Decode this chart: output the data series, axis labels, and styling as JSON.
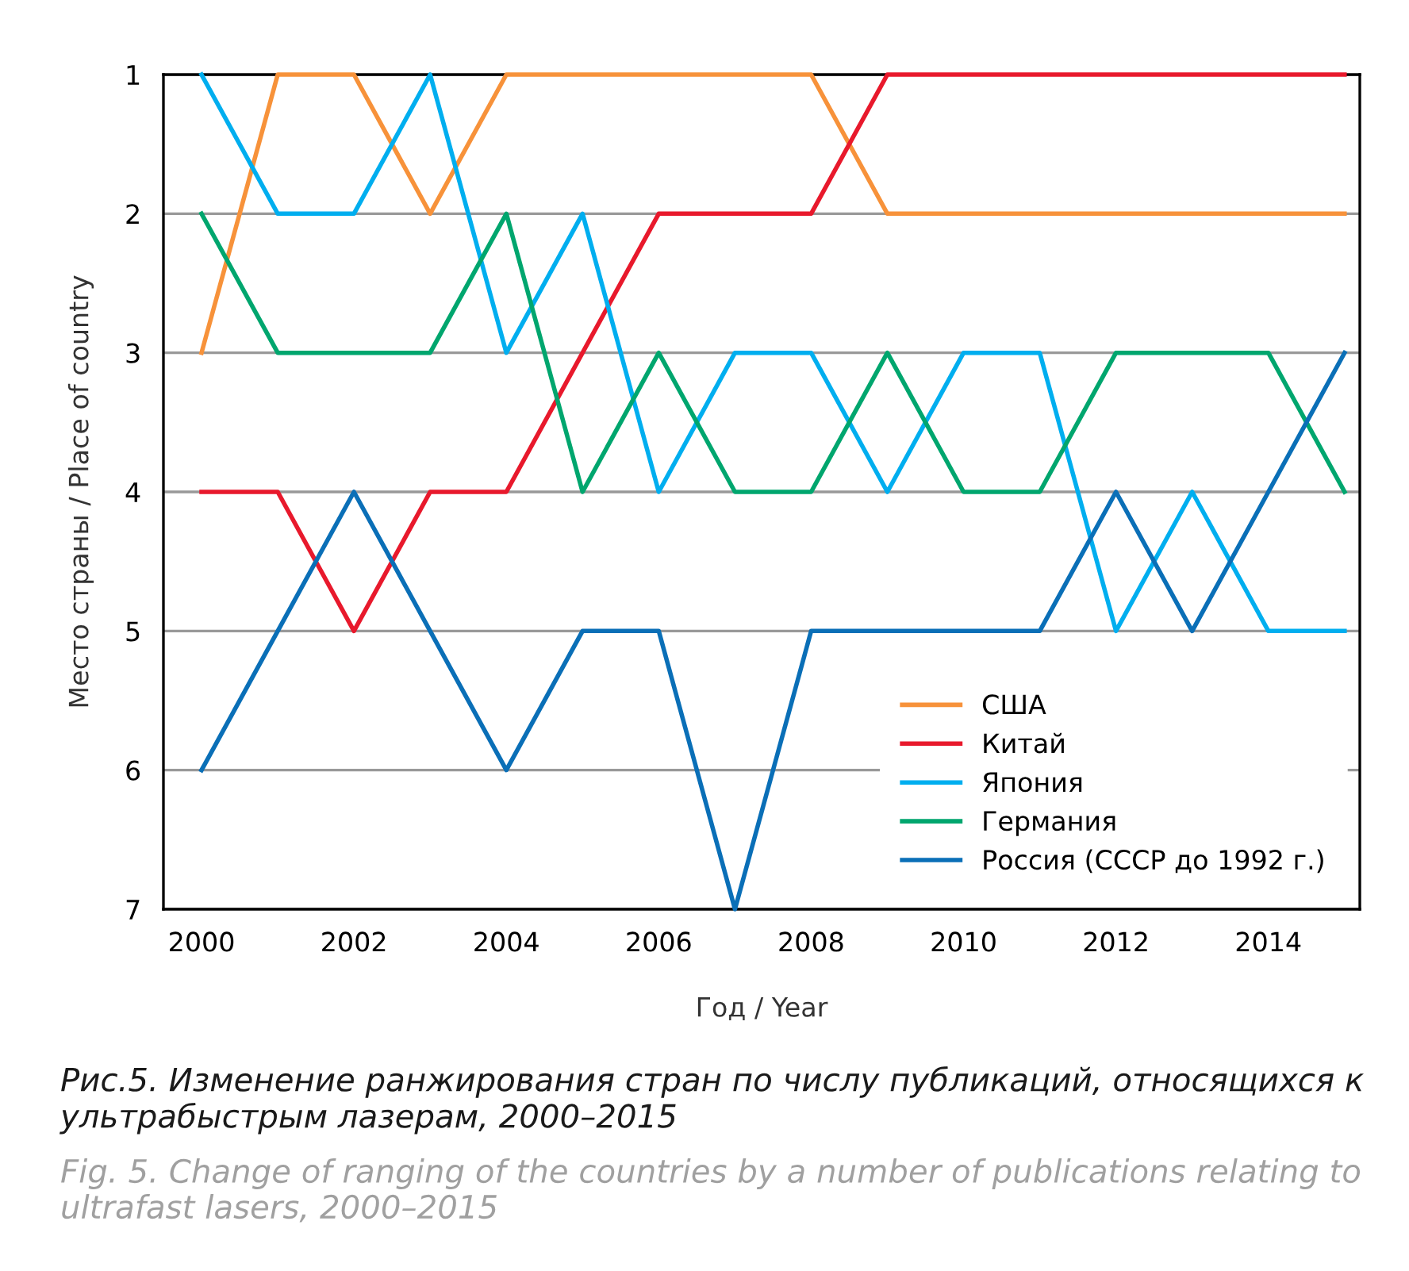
{
  "chart_data": {
    "type": "line",
    "title": "Рис.5. Изменение ранжирования стран по числу публикаций, относящихся к ультрабыстрым лазерам, 2000–2015",
    "subtitle": "Fig. 5. Change of ranging of the countries by a number of publications relating to ultrafast lasers, 2000–2015",
    "xlabel": "Год / Year",
    "ylabel": "Место страны / Place of country",
    "x": [
      2000,
      2001,
      2002,
      2003,
      2004,
      2005,
      2006,
      2007,
      2008,
      2009,
      2010,
      2011,
      2012,
      2013,
      2014,
      2015
    ],
    "series": [
      {
        "name": "США",
        "color": "#f7923a",
        "values": [
          3,
          1,
          1,
          2,
          1,
          1,
          1,
          1,
          1,
          2,
          2,
          2,
          2,
          2,
          2,
          2
        ]
      },
      {
        "name": "Китай",
        "color": "#e8192c",
        "values": [
          4,
          4,
          5,
          4,
          4,
          3,
          2,
          2,
          2,
          1,
          1,
          1,
          1,
          1,
          1,
          1
        ]
      },
      {
        "name": "Япония",
        "color": "#00aeef",
        "values": [
          1,
          2,
          2,
          1,
          3,
          2,
          4,
          3,
          3,
          4,
          3,
          3,
          5,
          4,
          5,
          5
        ]
      },
      {
        "name": "Германия",
        "color": "#00a66e",
        "values": [
          2,
          3,
          3,
          3,
          2,
          4,
          3,
          4,
          4,
          3,
          4,
          4,
          3,
          3,
          3,
          4
        ]
      },
      {
        "name": "Россия (СССР до 1992 г.)",
        "color": "#0a6fb7",
        "values": [
          6,
          5,
          4,
          5,
          6,
          5,
          5,
          7,
          5,
          5,
          5,
          5,
          4,
          5,
          4,
          3
        ]
      }
    ],
    "xlim": [
      1999.5,
      2015.2
    ],
    "xticks": [
      2000,
      2002,
      2004,
      2006,
      2008,
      2010,
      2012,
      2014
    ],
    "ylim": [
      7,
      1
    ],
    "yticks": [
      1,
      2,
      3,
      4,
      5,
      6,
      7
    ],
    "grid": "y",
    "legend": "bottom right",
    "marker": "none",
    "line_style": "solid"
  }
}
